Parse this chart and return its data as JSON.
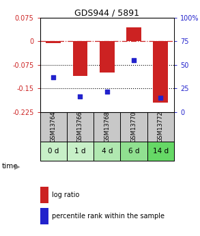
{
  "title": "GDS944 / 5891",
  "samples": [
    "GSM13764",
    "GSM13766",
    "GSM13768",
    "GSM13770",
    "GSM13772"
  ],
  "time_labels": [
    "0 d",
    "1 d",
    "4 d",
    "6 d",
    "14 d"
  ],
  "log_ratios": [
    -0.005,
    -0.11,
    -0.1,
    0.045,
    -0.195
  ],
  "percentile_ranks": [
    37,
    17,
    22,
    55,
    15
  ],
  "ylim_left": [
    -0.225,
    0.075
  ],
  "ylim_right": [
    0,
    100
  ],
  "yticks_left": [
    0.075,
    0,
    -0.075,
    -0.15,
    -0.225
  ],
  "yticks_right": [
    100,
    75,
    50,
    25,
    0
  ],
  "bar_color": "#cc2222",
  "point_color": "#2222cc",
  "zero_line_color": "#cc2222",
  "dotted_line_color": "#000000",
  "gsm_bg_color": "#c8c8c8",
  "time_bg_colors": [
    "#c8f0c8",
    "#c8f0c8",
    "#b0e8b0",
    "#90e090",
    "#66d866"
  ],
  "legend_bar_color": "#cc2222",
  "legend_point_color": "#2222cc",
  "bar_width": 0.55,
  "figsize": [
    2.93,
    3.45
  ],
  "dpi": 100
}
